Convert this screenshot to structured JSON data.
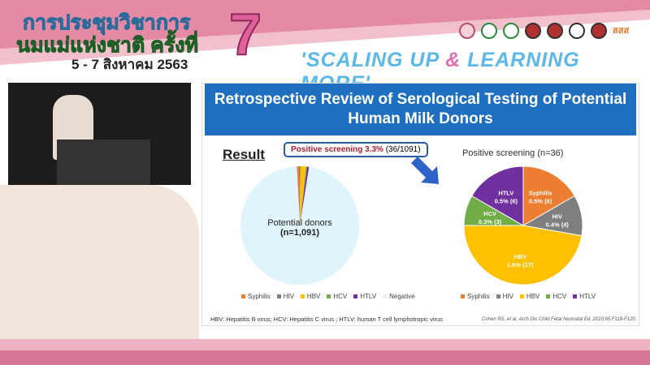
{
  "banner": {
    "line1": "การประชุมวิชาการ",
    "line2": "นมแม่แห่งชาติ ครั้งที่",
    "number": "7",
    "dates": "5 - 7 สิงหาคม 2563",
    "slogan_a": "'SCALING UP ",
    "slogan_amp": "&",
    "slogan_b": " LEARNING MORE'",
    "logo_text": "สสส"
  },
  "slide": {
    "title": "Retrospective Review of Serological Testing of Potential Human Milk Donors",
    "result_heading": "Result",
    "callout_bold": "Positive screening 3.3%",
    "callout_rest": " (36/1091)",
    "left_label_1": "Potential donors",
    "left_label_2": "(n=1,091)",
    "right_title": "Positive screening (n=36)",
    "footnote": "HBV: Hepatitis B virus; HCV: Hepatitis C virus ; HTLV: human T cell lymphotropic virus",
    "citation": "Cohen RS, et al. Arch Dis Child Fetal Neonatal Ed. 2010;95:F118-F120."
  },
  "chart_data": [
    {
      "type": "pie",
      "categories": [
        "Syphilis",
        "HIV",
        "HBV",
        "HCV",
        "HTLV",
        "Negative"
      ],
      "values": [
        6,
        4,
        17,
        3,
        6,
        1055
      ],
      "colors": [
        "#ed7d31",
        "#7f7f7f",
        "#ffc000",
        "#70ad47",
        "#7030a0",
        "#e0f4fc"
      ],
      "legend": "bottom"
    },
    {
      "type": "pie",
      "title": "Positive screening (n=36)",
      "categories": [
        "Syphilis",
        "HIV",
        "HBV",
        "HCV",
        "HTLV"
      ],
      "values": [
        6,
        4,
        17,
        3,
        6
      ],
      "labels": [
        "0.5% (6)",
        "0.4% (4)",
        "1.6% (17)",
        "0.3% (3)",
        "0.5% (6)"
      ],
      "colors": [
        "#ed7d31",
        "#7f7f7f",
        "#ffc000",
        "#70ad47",
        "#7030a0"
      ],
      "legend": "bottom"
    }
  ]
}
